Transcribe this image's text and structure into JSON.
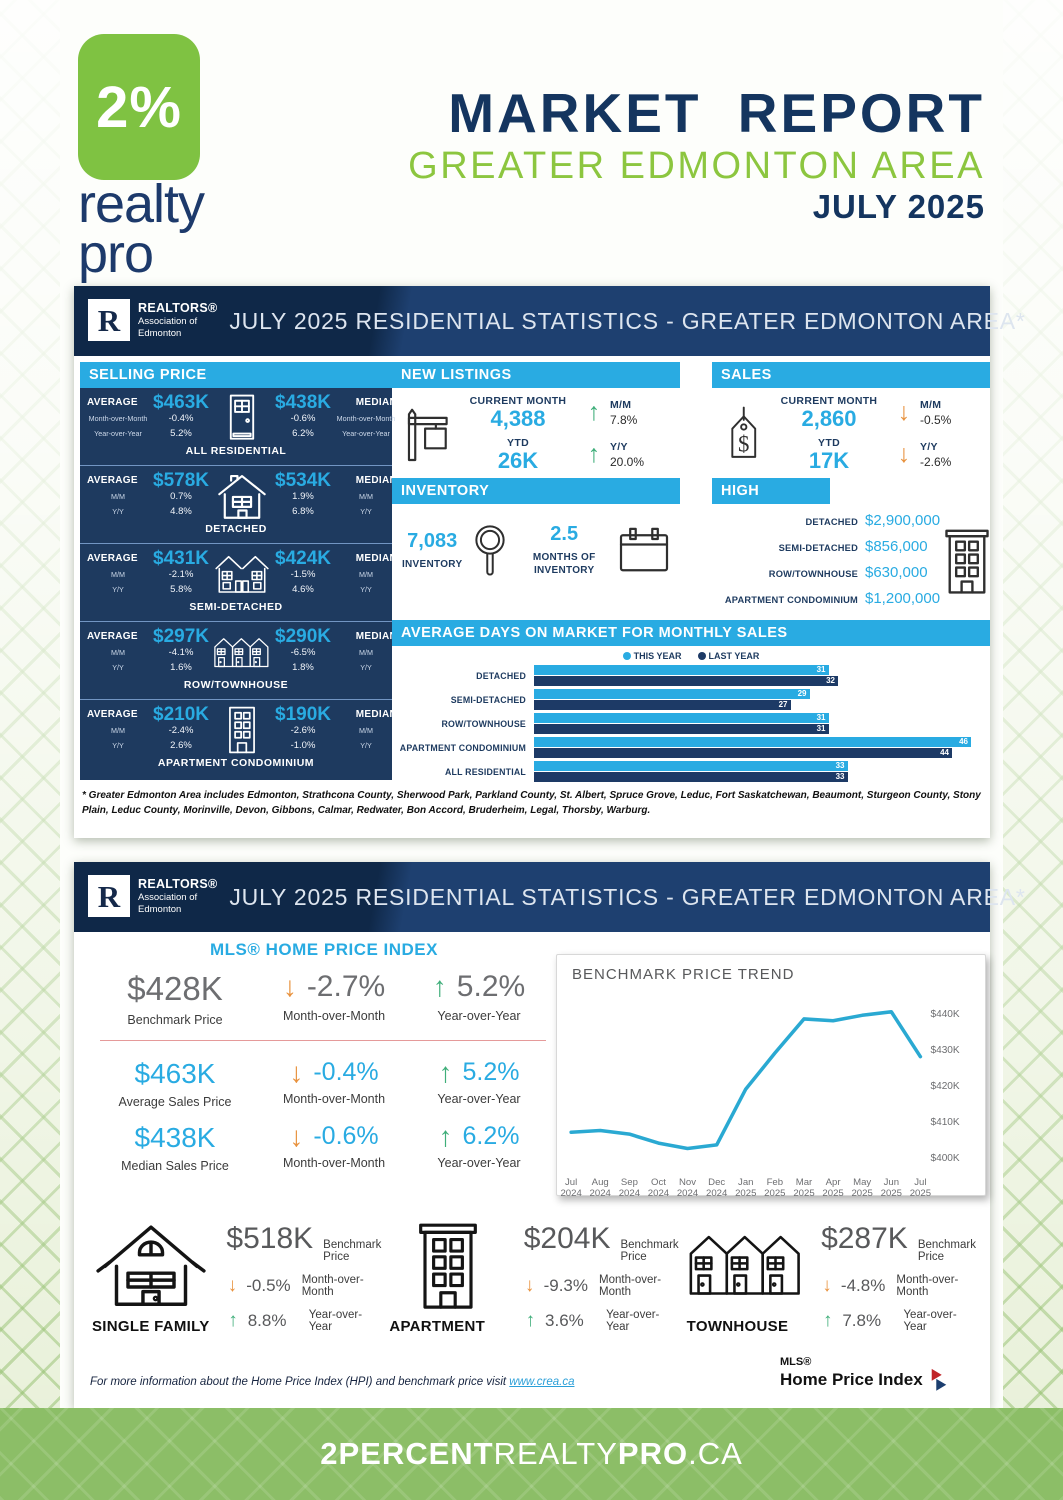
{
  "brand": {
    "logo_percent": "2%",
    "logo_word1": "realty",
    "logo_word2": "pro"
  },
  "header": {
    "title": "MARKET REPORT",
    "area": "GREATER EDMONTON AREA",
    "period": "JULY 2025"
  },
  "band": {
    "title": "JULY 2025 RESIDENTIAL STATISTICS - GREATER EDMONTON AREA*",
    "rae_letter": "R",
    "rae_line1": "REALTORS®",
    "rae_line2": "Association of",
    "rae_line3": "Edmonton"
  },
  "card1": {
    "selling_price": {
      "header": "SELLING PRICE",
      "rows": [
        {
          "name": "ALL RESIDENTIAL",
          "icon": "door-icon",
          "left_label": "AVERAGE",
          "right_label": "MEDIAN",
          "mm_label": "Month-over-Month",
          "yy_label": "Year-over-Year",
          "avg": "$463K",
          "avg_mm": "-0.4%",
          "avg_yy": "5.2%",
          "median": "$438K",
          "med_mm": "-0.6%",
          "med_yy": "6.2%"
        },
        {
          "name": "DETACHED",
          "icon": "house-icon",
          "left_label": "AVERAGE",
          "right_label": "MEDIAN",
          "mm_label": "M/M",
          "yy_label": "Y/Y",
          "avg": "$578K",
          "avg_mm": "0.7%",
          "avg_yy": "4.8%",
          "median": "$534K",
          "med_mm": "1.9%",
          "med_yy": "6.8%"
        },
        {
          "name": "SEMI-DETACHED",
          "icon": "duplex-icon",
          "left_label": "AVERAGE",
          "right_label": "MEDIAN",
          "mm_label": "M/M",
          "yy_label": "Y/Y",
          "avg": "$431K",
          "avg_mm": "-2.1%",
          "avg_yy": "5.8%",
          "median": "$424K",
          "med_mm": "-1.5%",
          "med_yy": "4.6%"
        },
        {
          "name": "ROW/TOWNHOUSE",
          "icon": "townhouse-icon",
          "left_label": "AVERAGE",
          "right_label": "MEDIAN",
          "mm_label": "M/M",
          "yy_label": "Y/Y",
          "avg": "$297K",
          "avg_mm": "-4.1%",
          "avg_yy": "1.6%",
          "median": "$290K",
          "med_mm": "-6.5%",
          "med_yy": "1.8%"
        },
        {
          "name": "APARTMENT CONDOMINIUM",
          "icon": "apt-icon",
          "left_label": "AVERAGE",
          "right_label": "MEDIAN",
          "mm_label": "M/M",
          "yy_label": "Y/Y",
          "avg": "$210K",
          "avg_mm": "-2.4%",
          "avg_yy": "2.6%",
          "median": "$190K",
          "med_mm": "-2.6%",
          "med_yy": "-1.0%"
        }
      ]
    },
    "new_listings": {
      "header": "NEW LISTINGS",
      "icon": "sign-icon",
      "rows": [
        {
          "label": "CURRENT MONTH",
          "value": "4,388",
          "trend": "up",
          "side_label": "M/M",
          "side_value": "7.8%"
        },
        {
          "label": "YTD",
          "value": "26K",
          "trend": "up",
          "side_label": "Y/Y",
          "side_value": "20.0%"
        }
      ]
    },
    "sales": {
      "header": "SALES",
      "icon": "tag-icon",
      "rows": [
        {
          "label": "CURRENT MONTH",
          "value": "2,860",
          "trend": "down",
          "side_label": "M/M",
          "side_value": "-0.5%"
        },
        {
          "label": "YTD",
          "value": "17K",
          "trend": "down",
          "side_label": "Y/Y",
          "side_value": "-2.6%"
        }
      ]
    },
    "inventory": {
      "header": "INVENTORY",
      "count": "7,083",
      "count_label": "INVENTORY",
      "months": "2.5",
      "months_label": "MONTHS OF INVENTORY"
    },
    "high_rollers": {
      "header": "HIGH ROLLERS",
      "items": [
        {
          "label": "DETACHED",
          "value": "$2,900,000"
        },
        {
          "label": "SEMI-DETACHED",
          "value": "$856,000"
        },
        {
          "label": "ROW/TOWNHOUSE",
          "value": "$630,000"
        },
        {
          "label": "APARTMENT CONDOMINIUM",
          "value": "$1,200,000"
        }
      ]
    },
    "footnote": "* Greater Edmonton Area includes Edmonton, Strathcona County, Sherwood Park, Parkland County, St. Albert, Spruce Grove, Leduc, Fort Saskatchewan, Beaumont, Sturgeon County, Stony Plain, Leduc County, Morinville, Devon, Gibbons, Calmar, Redwater, Bon Accord, Bruderheim, Legal, Thorsby, Warburg."
  },
  "card2": {
    "hpi_title": "MLS® HOME PRICE INDEX",
    "hpi_rows": [
      {
        "value": "$428K",
        "label": "Benchmark Price",
        "mm": "-2.7%",
        "mm_label": "Month-over-Month",
        "yy": "5.2%",
        "yy_label": "Year-over-Year",
        "tone": "gray"
      },
      {
        "value": "$463K",
        "label": "Average Sales Price",
        "mm": "-0.4%",
        "mm_label": "Month-over-Month",
        "yy": "5.2%",
        "yy_label": "Year-over-Year",
        "tone": "blue"
      },
      {
        "value": "$438K",
        "label": "Median Sales Price",
        "mm": "-0.6%",
        "mm_label": "Month-over-Month",
        "yy": "6.2%",
        "yy_label": "Year-over-Year",
        "tone": "blue"
      }
    ],
    "property_types": [
      {
        "name": "SINGLE FAMILY",
        "icon": "single-family-icon",
        "value": "$518K",
        "value_label": "Benchmark Price",
        "mm": "-0.5%",
        "mm_label": "Month-over-Month",
        "yy": "8.8%",
        "yy_label": "Year-over-Year"
      },
      {
        "name": "APARTMENT",
        "icon": "building-icon",
        "value": "$204K",
        "value_label": "Benchmark Price",
        "mm": "-9.3%",
        "mm_label": "Month-over-Month",
        "yy": "3.6%",
        "yy_label": "Year-over-Year"
      },
      {
        "name": "TOWNHOUSE",
        "icon": "townhouse-icon",
        "value": "$287K",
        "value_label": "Benchmark Price",
        "mm": "-4.8%",
        "mm_label": "Month-over-Month",
        "yy": "7.8%",
        "yy_label": "Year-over-Year"
      }
    ],
    "footer_note": "For more information about the Home Price Index (HPI) and benchmark price visit",
    "footer_link": "www.crea.ca",
    "mls_logo_line1": "MLS®",
    "mls_logo_line2": "Home Price Index"
  },
  "footer_bar": {
    "full": "2PERCENTREALTYPRO.CA",
    "parts": [
      {
        "text": "2PERCENT",
        "bold": true
      },
      {
        "text": "REALTY",
        "bold": false
      },
      {
        "text": "PRO",
        "bold": true
      },
      {
        "text": ".CA",
        "bold": false
      }
    ]
  },
  "chart_data": [
    {
      "type": "bar",
      "orientation": "horizontal",
      "title": "AVERAGE DAYS ON MARKET FOR MONTHLY SALES",
      "categories": [
        "DETACHED",
        "SEMI-DETACHED",
        "ROW/TOWNHOUSE",
        "APARTMENT CONDOMINIUM",
        "ALL RESIDENTIAL"
      ],
      "series": [
        {
          "name": "THIS YEAR",
          "color": "#29abe2",
          "values": [
            31,
            29,
            31,
            46,
            33
          ]
        },
        {
          "name": "LAST YEAR",
          "color": "#1d3a66",
          "values": [
            32,
            27,
            31,
            44,
            33
          ]
        }
      ],
      "xlim": [
        0,
        48
      ],
      "legend_position": "top",
      "grid": false
    },
    {
      "type": "line",
      "title": "BENCHMARK PRICE TREND",
      "x": [
        "Jul 2024",
        "Aug 2024",
        "Sep 2024",
        "Oct 2024",
        "Nov 2024",
        "Dec 2024",
        "Jan 2025",
        "Feb 2025",
        "Mar 2025",
        "Apr 2025",
        "May 2025",
        "Jun 2025",
        "Jul 2025"
      ],
      "values": [
        407000,
        407500,
        406500,
        404000,
        402500,
        403500,
        419000,
        429000,
        438500,
        438000,
        439500,
        440500,
        428000
      ],
      "ylabel": "",
      "xlabel": "",
      "ylim": [
        398000,
        444000
      ],
      "y_ticks": [
        "$400K",
        "$410K",
        "$420K",
        "$430K",
        "$440K"
      ],
      "y_tick_values": [
        400000,
        410000,
        420000,
        430000,
        440000
      ],
      "line_color": "#2aa9d2",
      "grid": false,
      "legend_position": "none"
    }
  ],
  "colors": {
    "accent_blue": "#29abe2",
    "panel_navy": "#1e3a5f",
    "band_navy": "#0f2848",
    "brand_green": "#7fc242",
    "up_green": "#3fae7a",
    "down_orange": "#e8923e",
    "bar_dark": "#1d3a66"
  }
}
